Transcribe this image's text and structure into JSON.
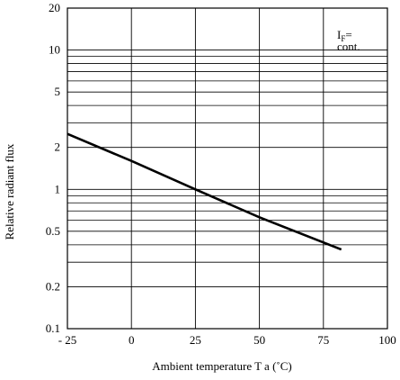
{
  "chart_data": {
    "type": "line",
    "title": "",
    "xlabel": "Ambient temperature T a (˚C)",
    "ylabel": "Relative radiant flux",
    "xlim": [
      -25,
      100
    ],
    "ylim": [
      0.1,
      20
    ],
    "y_scale": "log",
    "grid": true,
    "x_ticks": [
      -25,
      0,
      25,
      50,
      75,
      100
    ],
    "x_tick_labels": [
      "- 25",
      "0",
      "25",
      "50",
      "75",
      "100"
    ],
    "y_ticks": [
      0.1,
      0.2,
      0.5,
      1,
      2,
      5,
      10,
      20
    ],
    "y_tick_labels": [
      "0.1",
      "0.2",
      "0.5",
      "1",
      "2",
      "5",
      "10",
      "20"
    ],
    "annotation": {
      "line1_main": "I",
      "line1_sub": "F",
      "line1_suffix": "=",
      "line2": "cont."
    },
    "series": [
      {
        "x": [
          -25,
          0,
          25,
          50,
          82
        ],
        "values": [
          2.5,
          1.6,
          1.0,
          0.63,
          0.37
        ]
      }
    ]
  }
}
